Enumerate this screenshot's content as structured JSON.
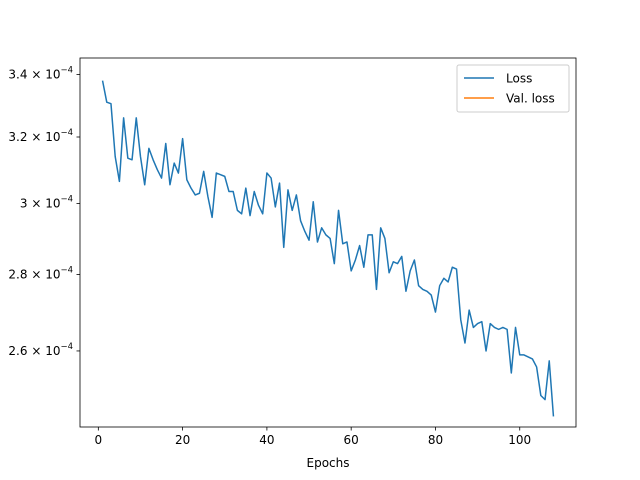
{
  "chart_data": {
    "type": "line",
    "xlabel": "Epochs",
    "ylabel": "",
    "title": "",
    "xlim": [
      -4.35,
      113.35
    ],
    "ylim": [
      0.0002415,
      0.0003455
    ],
    "yscale": "log",
    "x_ticks": [
      0,
      20,
      40,
      60,
      80,
      100
    ],
    "y_ticks": [
      {
        "value": 0.00026,
        "mantissa": "2.6",
        "exp": "−4"
      },
      {
        "value": 0.00028,
        "mantissa": "2.8",
        "exp": "−4"
      },
      {
        "value": 0.0003,
        "mantissa": "3",
        "exp": "−4"
      },
      {
        "value": 0.00032,
        "mantissa": "3.2",
        "exp": "−4"
      },
      {
        "value": 0.00034,
        "mantissa": "3.4",
        "exp": "−4"
      }
    ],
    "y_tick_base": "10",
    "grid": false,
    "legend_position": "top-right",
    "colors": {
      "loss": "#1f77b4",
      "val_loss": "#ff7f0e"
    },
    "series": [
      {
        "name": "Loss",
        "color": "#1f77b4",
        "x": [
          1,
          2,
          3,
          4,
          5,
          6,
          7,
          8,
          9,
          10,
          11,
          12,
          13,
          14,
          15,
          16,
          17,
          18,
          19,
          20,
          21,
          22,
          23,
          24,
          25,
          26,
          27,
          28,
          29,
          30,
          31,
          32,
          33,
          34,
          35,
          36,
          37,
          38,
          39,
          40,
          41,
          42,
          43,
          44,
          45,
          46,
          47,
          48,
          49,
          50,
          51,
          52,
          53,
          54,
          55,
          56,
          57,
          58,
          59,
          60,
          61,
          62,
          63,
          64,
          65,
          66,
          67,
          68,
          69,
          70,
          71,
          72,
          73,
          74,
          75,
          76,
          77,
          78,
          79,
          80,
          81,
          82,
          83,
          84,
          85,
          86,
          87,
          88,
          89,
          90,
          91,
          92,
          93,
          94,
          95,
          96,
          97,
          98,
          99,
          100,
          101,
          102,
          103,
          104,
          105,
          106,
          107,
          108
        ],
        "values": [
          0.000338,
          0.000331,
          0.0003305,
          0.000314,
          0.0003065,
          0.000326,
          0.0003135,
          0.000313,
          0.000326,
          0.000314,
          0.0003055,
          0.0003165,
          0.000313,
          0.00031,
          0.0003075,
          0.000318,
          0.0003055,
          0.000312,
          0.000309,
          0.0003195,
          0.000307,
          0.0003045,
          0.0003025,
          0.000303,
          0.0003095,
          0.000302,
          0.000296,
          0.000309,
          0.0003085,
          0.000308,
          0.0003035,
          0.0003035,
          0.000298,
          0.000297,
          0.0003045,
          0.0002965,
          0.0003035,
          0.0002995,
          0.000297,
          0.000309,
          0.0003075,
          0.000299,
          0.000306,
          0.0002875,
          0.000304,
          0.000298,
          0.0003025,
          0.000295,
          0.000292,
          0.0002895,
          0.0003005,
          0.000289,
          0.000293,
          0.000291,
          0.00029,
          0.000283,
          0.000298,
          0.0002885,
          0.000289,
          0.000281,
          0.000284,
          0.000288,
          0.000282,
          0.000291,
          0.000291,
          0.000276,
          0.000293,
          0.00029,
          0.0002805,
          0.0002835,
          0.000283,
          0.000285,
          0.0002755,
          0.000281,
          0.000284,
          0.000277,
          0.000276,
          0.0002755,
          0.0002745,
          0.00027,
          0.000277,
          0.000279,
          0.000278,
          0.000282,
          0.0002815,
          0.000268,
          0.000262,
          0.0002705,
          0.000266,
          0.000267,
          0.0002675,
          0.00026,
          0.000267,
          0.000266,
          0.0002655,
          0.000266,
          0.0002655,
          0.0002545,
          0.000266,
          0.000259,
          0.000259,
          0.0002585,
          0.000258,
          0.000256,
          0.000249,
          0.000248,
          0.0002575,
          0.000244
        ]
      },
      {
        "name": "Val. loss",
        "color": "#ff7f0e",
        "x": [],
        "values": []
      }
    ]
  }
}
